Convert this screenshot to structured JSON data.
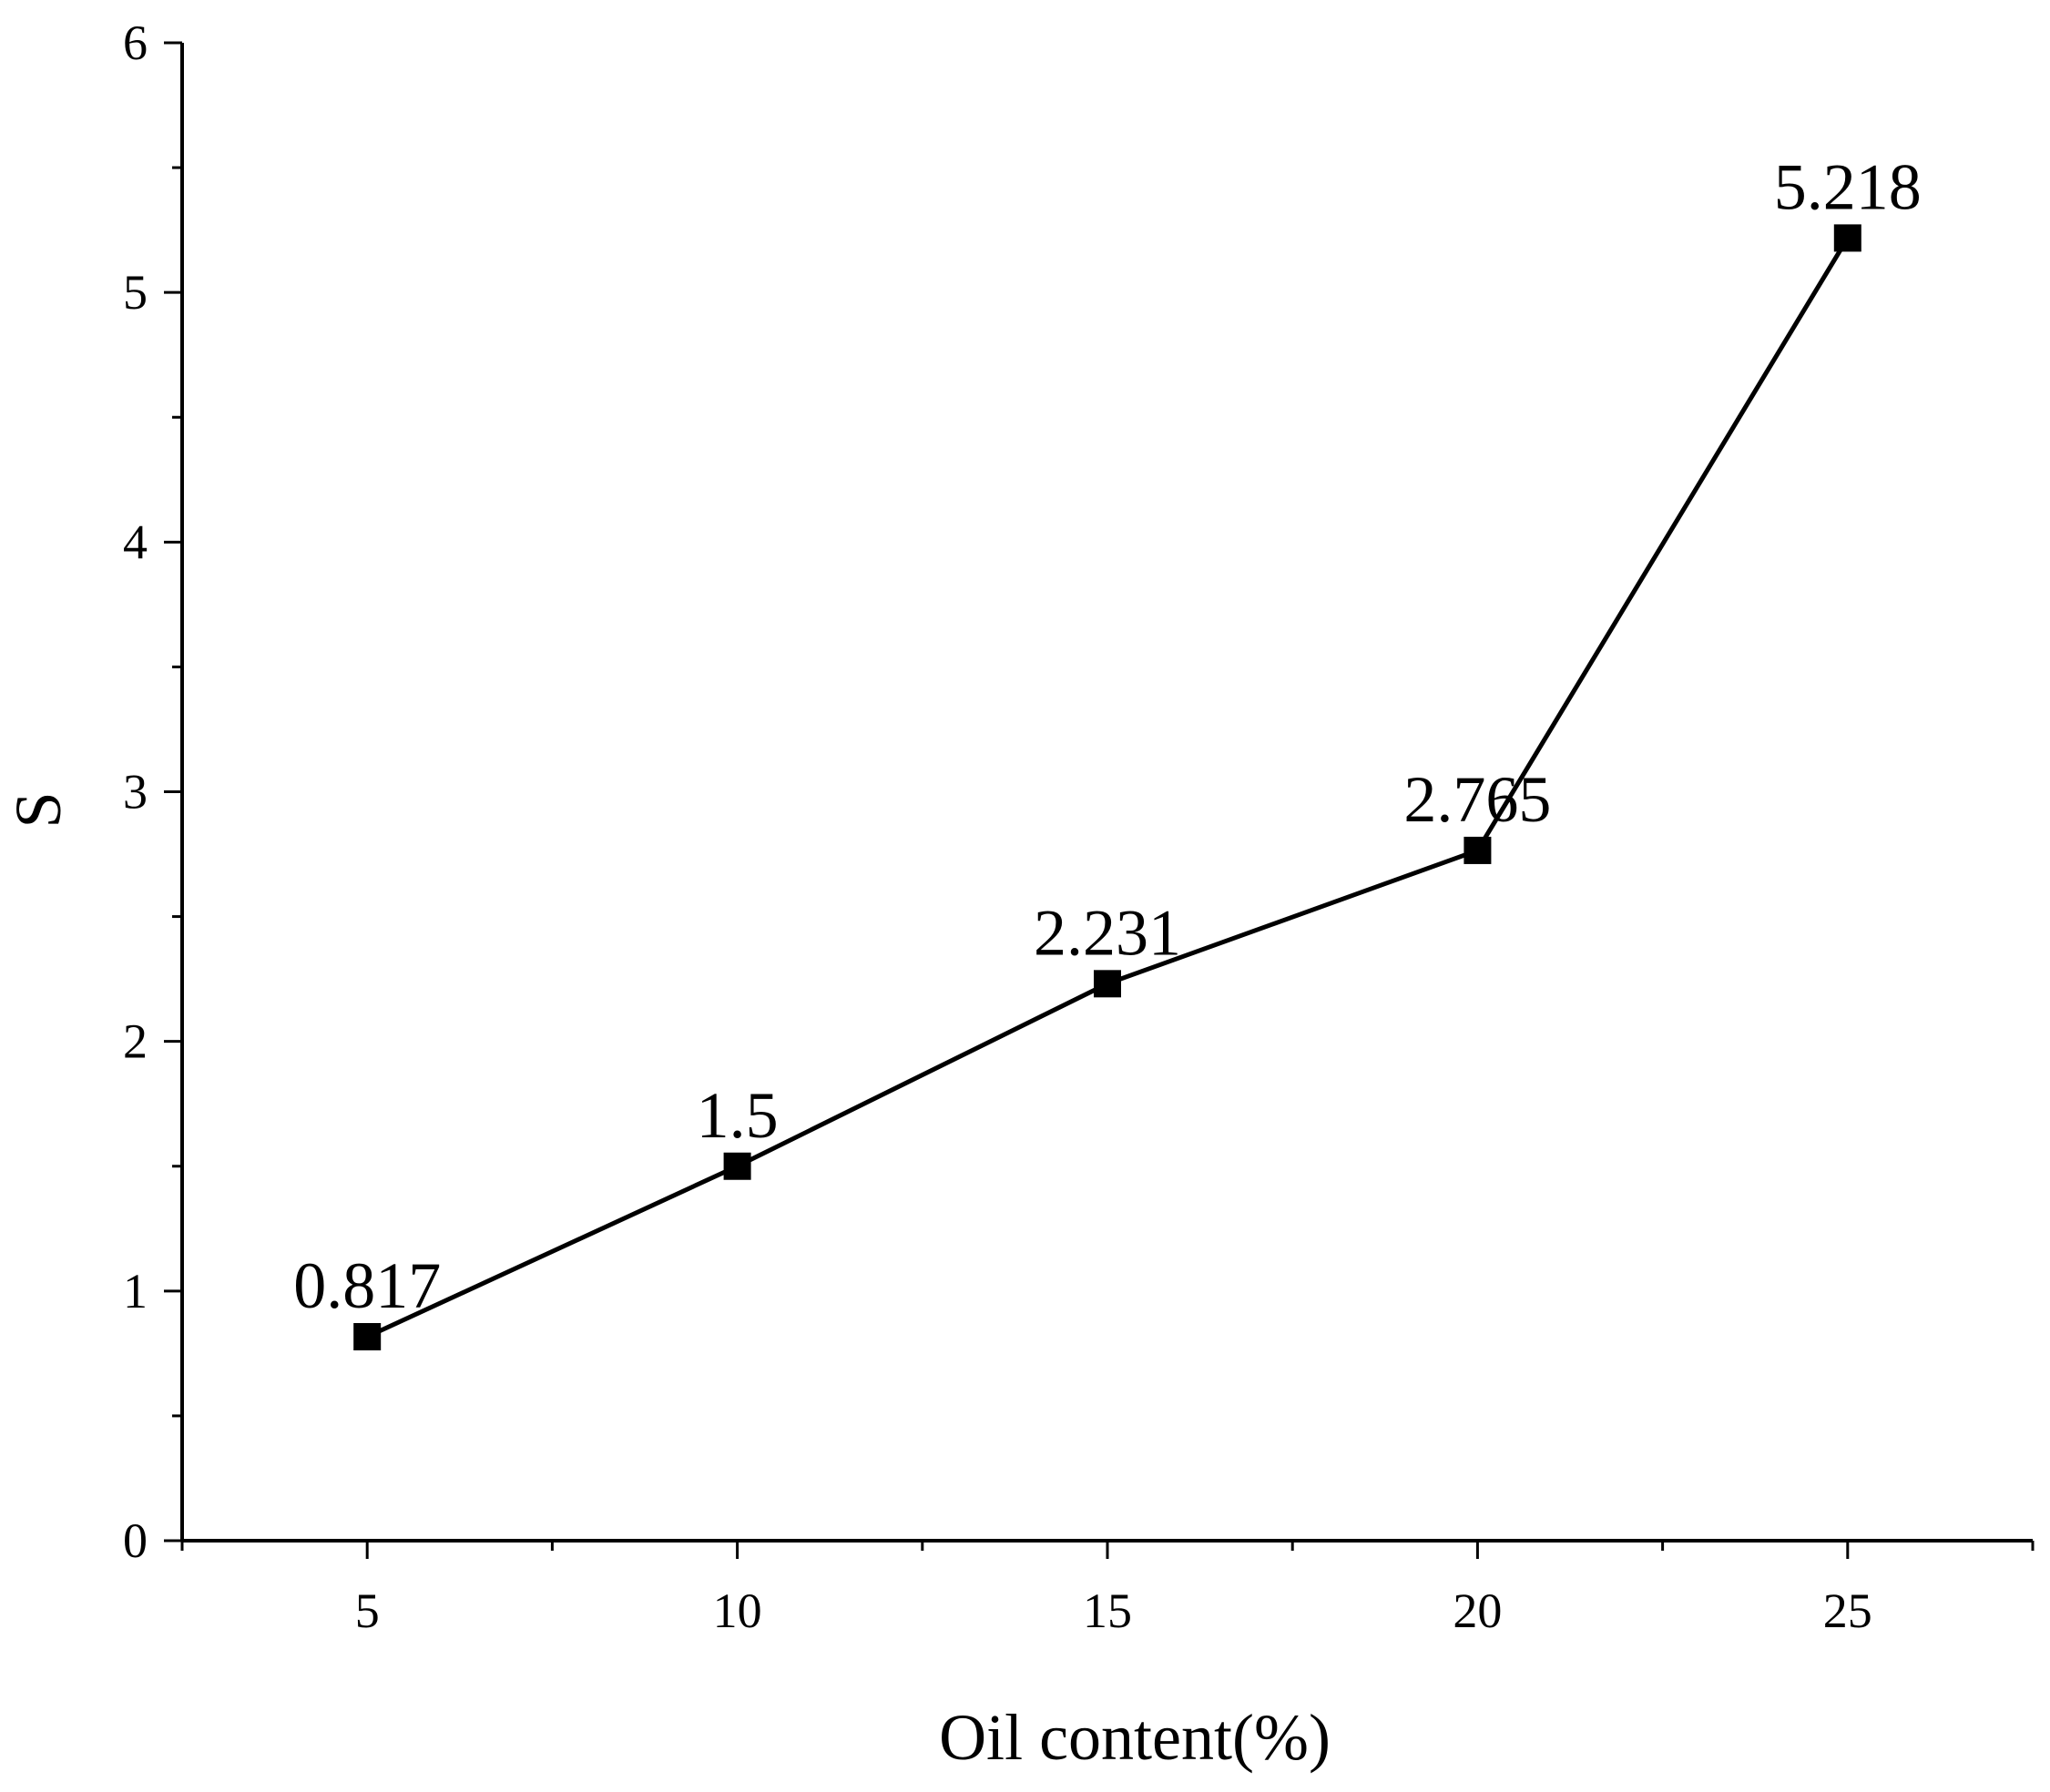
{
  "chart_data": {
    "type": "line",
    "title": "",
    "xlabel": "Oil content(%)",
    "ylabel": "S",
    "xlim": [
      2.5,
      27.5
    ],
    "ylim": [
      0,
      6
    ],
    "x_ticks": [
      5,
      10,
      15,
      20,
      25
    ],
    "y_ticks": [
      0,
      1,
      2,
      3,
      4,
      5,
      6
    ],
    "grid": false,
    "marker": "square",
    "series": [
      {
        "x": [
          5,
          10,
          15,
          20,
          25
        ],
        "y": [
          0.817,
          1.5,
          2.231,
          2.765,
          5.218
        ],
        "labels": [
          "0.817",
          "1.5",
          "2.231",
          "2.765",
          "5.218"
        ]
      }
    ]
  }
}
